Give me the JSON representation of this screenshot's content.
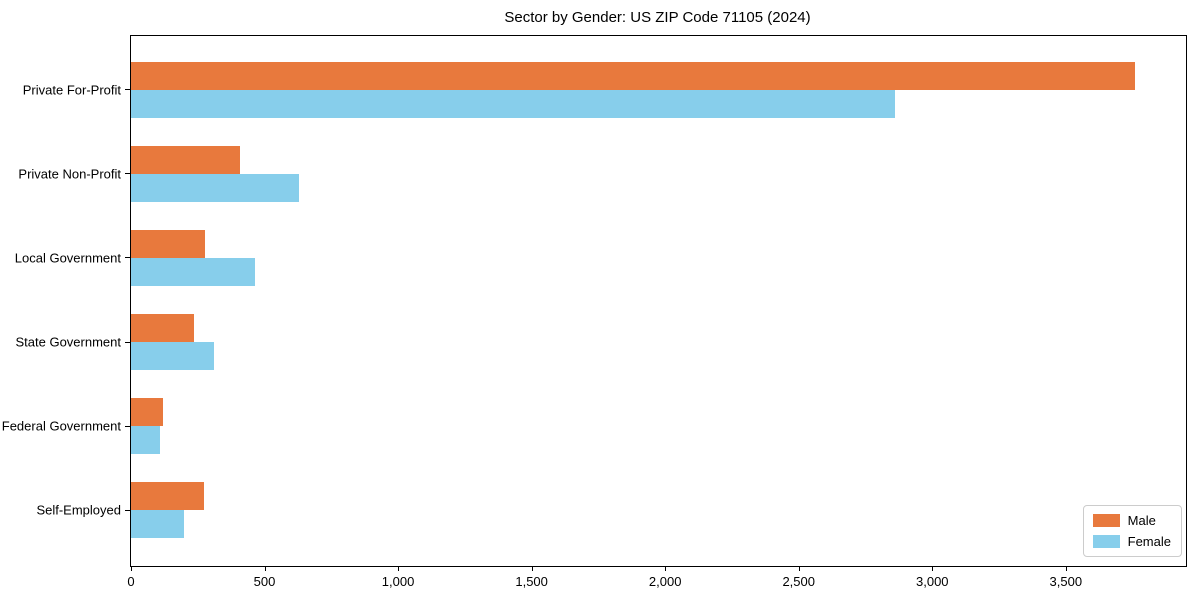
{
  "chart_data": {
    "type": "bar",
    "orientation": "horizontal",
    "title": "Sector by Gender: US ZIP Code 71105 (2024)",
    "categories": [
      "Private For-Profit",
      "Private Non-Profit",
      "Local Government",
      "State Government",
      "Federal Government",
      "Self-Employed"
    ],
    "series": [
      {
        "name": "Male",
        "color": "#E8793D",
        "values": [
          3760,
          408,
          277,
          235,
          120,
          273
        ]
      },
      {
        "name": "Female",
        "color": "#87CEEB",
        "values": [
          2860,
          630,
          465,
          310,
          108,
          198
        ]
      }
    ],
    "xlim": [
      0,
      3950
    ],
    "xticks": [
      0,
      500,
      1000,
      1500,
      2000,
      2500,
      3000,
      3500
    ],
    "xtick_labels": [
      "0",
      "500",
      "1,000",
      "1,500",
      "2,000",
      "2,500",
      "3,000",
      "3,500"
    ],
    "xlabel": "",
    "ylabel": "",
    "grid": false,
    "legend_position": "lower right"
  }
}
